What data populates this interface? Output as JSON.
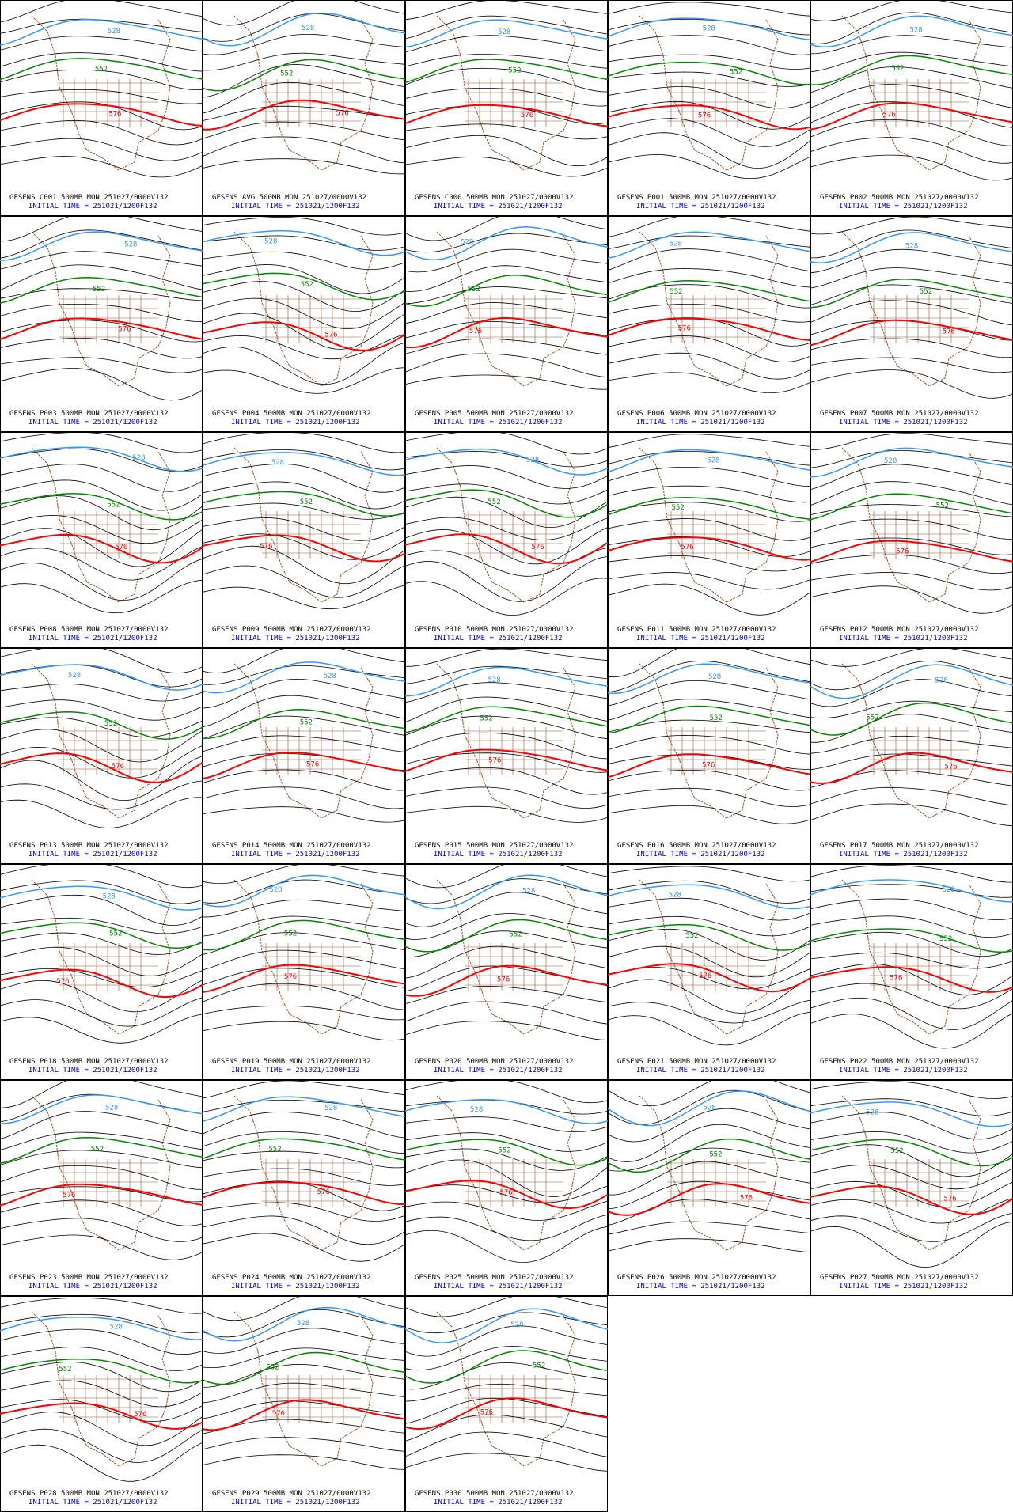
{
  "panels": [
    {
      "label": "GFSENS C001 500MB MON 251027/0000V132",
      "init": "INITIAL TIME = 251021/1200F132"
    },
    {
      "label": "GFSENS AVG 500MB MON 251027/0000V132",
      "init": "INITIAL TIME = 251021/1200F132"
    },
    {
      "label": "GFSENS C000 500MB MON 251027/0000V132",
      "init": "INITIAL TIME = 251021/1200F132"
    },
    {
      "label": "GFSENS P001 500MB MON 251027/0000V132",
      "init": "INITIAL TIME = 251021/1200F132"
    },
    {
      "label": "GFSENS P002 500MB MON 251027/0000V132",
      "init": "INITIAL TIME = 251021/1200F132"
    },
    {
      "label": "GFSENS P003 500MB MON 251027/0000V132",
      "init": "INITIAL TIME = 251021/1200F132"
    },
    {
      "label": "GFSENS P004 500MB MON 251027/0000V132",
      "init": "INITIAL TIME = 251021/1200F132"
    },
    {
      "label": "GFSENS P005 500MB MON 251027/0000V132",
      "init": "INITIAL TIME = 251021/1200F132"
    },
    {
      "label": "GFSENS P006 500MB MON 251027/0000V132",
      "init": "INITIAL TIME = 251021/1200F132"
    },
    {
      "label": "GFSENS P007 500MB MON 251027/0000V132",
      "init": "INITIAL TIME = 251021/1200F132"
    },
    {
      "label": "GFSENS P008 500MB MON 251027/0000V132",
      "init": "INITIAL TIME = 251021/1200F132"
    },
    {
      "label": "GFSENS P009 500MB MON 251027/0000V132",
      "init": "INITIAL TIME = 251021/1200F132"
    },
    {
      "label": "GFSENS P010 500MB MON 251027/0000V132",
      "init": "INITIAL TIME = 251021/1200F132"
    },
    {
      "label": "GFSENS P011 500MB MON 251027/0000V132",
      "init": "INITIAL TIME = 251021/1200F132"
    },
    {
      "label": "GFSENS P012 500MB MON 251027/0000V132",
      "init": "INITIAL TIME = 251021/1200F132"
    },
    {
      "label": "GFSENS P013 500MB MON 251027/0000V132",
      "init": "INITIAL TIME = 251021/1200F132"
    },
    {
      "label": "GFSENS P014 500MB MON 251027/0000V132",
      "init": "INITIAL TIME = 251021/1200F132"
    },
    {
      "label": "GFSENS P015 500MB MON 251027/0000V132",
      "init": "INITIAL TIME = 251021/1200F132"
    },
    {
      "label": "GFSENS P016 500MB MON 251027/0000V132",
      "init": "INITIAL TIME = 251021/1200F132"
    },
    {
      "label": "GFSENS P017 500MB MON 251027/0000V132",
      "init": "INITIAL TIME = 251021/1200F132"
    },
    {
      "label": "GFSENS P018 500MB MON 251027/0000V132",
      "init": "INITIAL TIME = 251021/1200F132"
    },
    {
      "label": "GFSENS P019 500MB MON 251027/0000V132",
      "init": "INITIAL TIME = 251021/1200F132"
    },
    {
      "label": "GFSENS P020 500MB MON 251027/0000V132",
      "init": "INITIAL TIME = 251021/1200F132"
    },
    {
      "label": "GFSENS P021 500MB MON 251027/0000V132",
      "init": "INITIAL TIME = 251021/1200F132"
    },
    {
      "label": "GFSENS P022 500MB MON 251027/0000V132",
      "init": "INITIAL TIME = 251021/1200F132"
    },
    {
      "label": "GFSENS P023 500MB MON 251027/0000V132",
      "init": "INITIAL TIME = 251021/1200F132"
    },
    {
      "label": "GFSENS P024 500MB MON 251027/0000V132",
      "init": "INITIAL TIME = 251021/1200F132"
    },
    {
      "label": "GFSENS P025 500MB MON 251027/0000V132",
      "init": "INITIAL TIME = 251021/1200F132"
    },
    {
      "label": "GFSENS P026 500MB MON 251027/0000V132",
      "init": "INITIAL TIME = 251021/1200F132"
    },
    {
      "label": "GFSENS P027 500MB MON 251027/0000V132",
      "init": "INITIAL TIME = 251021/1200F132"
    },
    {
      "label": "GFSENS P028 500MB MON 251027/0000V132",
      "init": "INITIAL TIME = 251021/1200F132"
    },
    {
      "label": "GFSENS P029 500MB MON 251027/0000V132",
      "init": "INITIAL TIME = 251021/1200F132"
    },
    {
      "label": "GFSENS P030 500MB MON 251027/0000V132",
      "init": "INITIAL TIME = 251021/1200F132"
    }
  ],
  "contour_levels": [
    {
      "label": "528",
      "color": "#3399ff"
    },
    {
      "label": "552",
      "color": "#008800"
    },
    {
      "label": "576",
      "color": "#ff0000"
    }
  ]
}
